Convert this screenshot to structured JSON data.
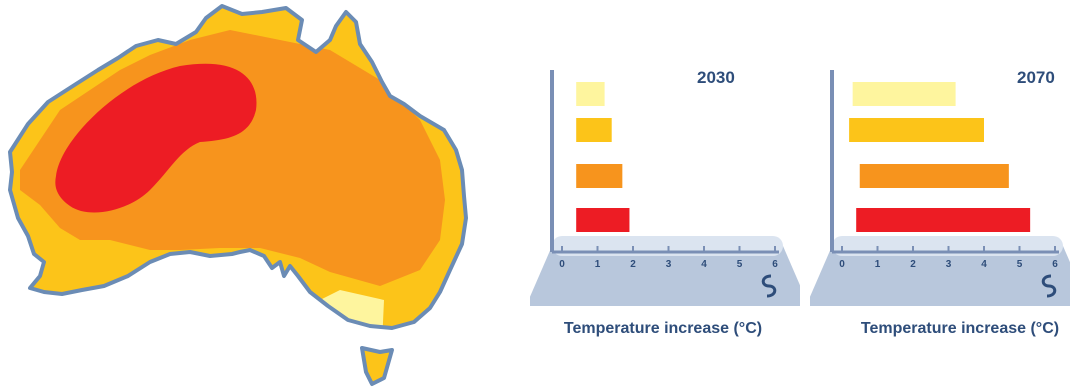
{
  "colors": {
    "band_lightest": "#fef59e",
    "band_light": "#fcc419",
    "band_medium": "#f7941d",
    "band_high": "#ed1c24",
    "outline": "#6b8cb5",
    "axis": "#7a8fb5",
    "text": "#2e4d7a"
  },
  "chart_data": [
    {
      "type": "bar",
      "orientation": "horizontal",
      "title": "2030",
      "xlabel": "Temperature increase (°C)",
      "xlim": [
        0,
        6
      ],
      "xticks": [
        "0",
        "1",
        "2",
        "3",
        "4",
        "5",
        "6"
      ],
      "series": [
        {
          "color": "#fef59e",
          "range": [
            0.4,
            1.2
          ]
        },
        {
          "color": "#fcc419",
          "range": [
            0.4,
            1.4
          ]
        },
        {
          "color": "#f7941d",
          "range": [
            0.4,
            1.7
          ]
        },
        {
          "color": "#ed1c24",
          "range": [
            0.4,
            1.9
          ]
        }
      ]
    },
    {
      "type": "bar",
      "orientation": "horizontal",
      "title": "2070",
      "xlabel": "Temperature increase (°C)",
      "xlim": [
        0,
        6
      ],
      "xticks": [
        "0",
        "1",
        "2",
        "3",
        "4",
        "5",
        "6"
      ],
      "series": [
        {
          "color": "#fef59e",
          "range": [
            0.3,
            3.2
          ]
        },
        {
          "color": "#fcc419",
          "range": [
            0.2,
            4.0
          ]
        },
        {
          "color": "#f7941d",
          "range": [
            0.5,
            4.7
          ]
        },
        {
          "color": "#ed1c24",
          "range": [
            0.4,
            5.3
          ]
        }
      ]
    }
  ]
}
